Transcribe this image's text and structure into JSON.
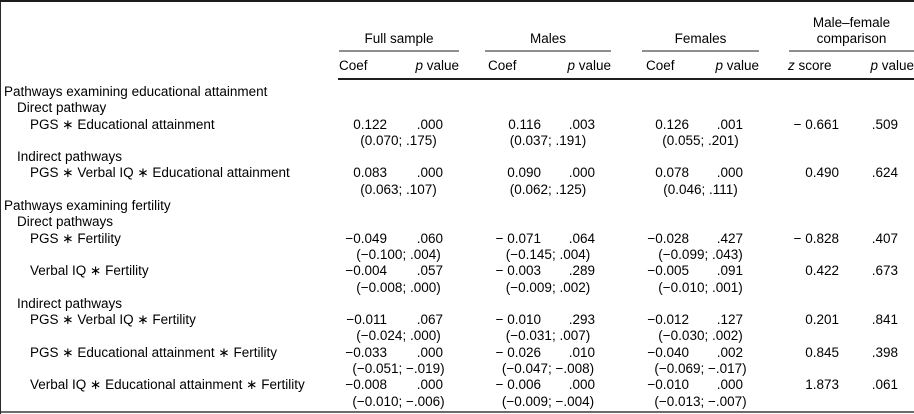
{
  "colors": {
    "background": "#ffffff",
    "text": "#000000",
    "rule_dark": "#1c1c1c",
    "rule_gray": "#8f8f8f"
  },
  "table": {
    "groups": [
      {
        "label": "Full sample",
        "col1": "Coef",
        "col2": "p value"
      },
      {
        "label": "Males",
        "col1": "Coef",
        "col2": "p value"
      },
      {
        "label": "Females",
        "col1": "Coef",
        "col2": "p value"
      },
      {
        "label_lines": [
          "Male–female",
          "comparison"
        ],
        "col1": "z score",
        "col2": "p value"
      }
    ],
    "rows": [
      {
        "type": "section",
        "label": "Pathways examining educational attainment"
      },
      {
        "type": "subsection",
        "label": "Direct pathway"
      },
      {
        "type": "data",
        "label": "PGS ∗ Educational attainment",
        "full_sample": {
          "coef": "0.122",
          "p": ".000",
          "ci": "(0.070; .175)"
        },
        "males": {
          "coef": "0.116",
          "p": ".003",
          "ci": "(0.037; .191)"
        },
        "females": {
          "coef": "0.126",
          "p": ".001",
          "ci": "(0.055; .201)"
        },
        "comparison": {
          "z": "− 0.661",
          "p": ".509"
        }
      },
      {
        "type": "subsection",
        "label": "Indirect pathways"
      },
      {
        "type": "data",
        "label": "PGS ∗ Verbal IQ ∗ Educational attainment",
        "full_sample": {
          "coef": "0.083",
          "p": ".000",
          "ci": "(0.063; .107)"
        },
        "males": {
          "coef": "0.090",
          "p": ".000",
          "ci": "(0.062; .125)"
        },
        "females": {
          "coef": "0.078",
          "p": ".000",
          "ci": "(0.046; .111)"
        },
        "comparison": {
          "z": "0.490",
          "p": ".624"
        }
      },
      {
        "type": "section",
        "label": "Pathways examining fertility"
      },
      {
        "type": "subsection",
        "label": "Direct pathways"
      },
      {
        "type": "data",
        "label": "PGS ∗ Fertility",
        "full_sample": {
          "coef": "−0.049",
          "p": ".060",
          "ci": "(−0.100; .004)"
        },
        "males": {
          "coef": "− 0.071",
          "p": ".064",
          "ci": "(−0.145; .004)"
        },
        "females": {
          "coef": "−0.028",
          "p": ".427",
          "ci": "(−0.099; .043)"
        },
        "comparison": {
          "z": "− 0.828",
          "p": ".407"
        }
      },
      {
        "type": "data",
        "label": "Verbal IQ ∗ Fertility",
        "full_sample": {
          "coef": "−0.004",
          "p": ".057",
          "ci": "(−0.008; .000)"
        },
        "males": {
          "coef": "− 0.003",
          "p": ".289",
          "ci": "(−0.009; .002)"
        },
        "females": {
          "coef": "−0.005",
          "p": ".091",
          "ci": "(−0.010; .001)"
        },
        "comparison": {
          "z": "0.422",
          "p": ".673"
        }
      },
      {
        "type": "subsection",
        "label": "Indirect pathways"
      },
      {
        "type": "data",
        "label": "PGS ∗ Verbal IQ ∗ Fertility",
        "full_sample": {
          "coef": "−0.011",
          "p": ".067",
          "ci": "(−0.024; .000)"
        },
        "males": {
          "coef": "− 0.010",
          "p": ".293",
          "ci": "(−0.031; .007)"
        },
        "females": {
          "coef": "−0.012",
          "p": ".127",
          "ci": "(−0.030; .002)"
        },
        "comparison": {
          "z": "0.201",
          "p": ".841"
        }
      },
      {
        "type": "data",
        "label": "PGS ∗ Educational attainment ∗ Fertility",
        "full_sample": {
          "coef": "−0.033",
          "p": ".000",
          "ci": "(−0.051; −.019)"
        },
        "males": {
          "coef": "− 0.026",
          "p": ".010",
          "ci": "(−0.047; −.008)"
        },
        "females": {
          "coef": "−0.040",
          "p": ".002",
          "ci": "(−0.069; −.017)"
        },
        "comparison": {
          "z": "0.845",
          "p": ".398"
        }
      },
      {
        "type": "data",
        "label": "Verbal IQ ∗ Educational attainment ∗ Fertility",
        "full_sample": {
          "coef": "−0.008",
          "p": ".000",
          "ci": "(−0.010; −.006)"
        },
        "males": {
          "coef": "− 0.006",
          "p": ".000",
          "ci": "(−0.009; −.004)"
        },
        "females": {
          "coef": "−0.010",
          "p": ".000",
          "ci": "(−0.013; −.007)"
        },
        "comparison": {
          "z": "1.873",
          "p": ".061"
        }
      }
    ]
  }
}
